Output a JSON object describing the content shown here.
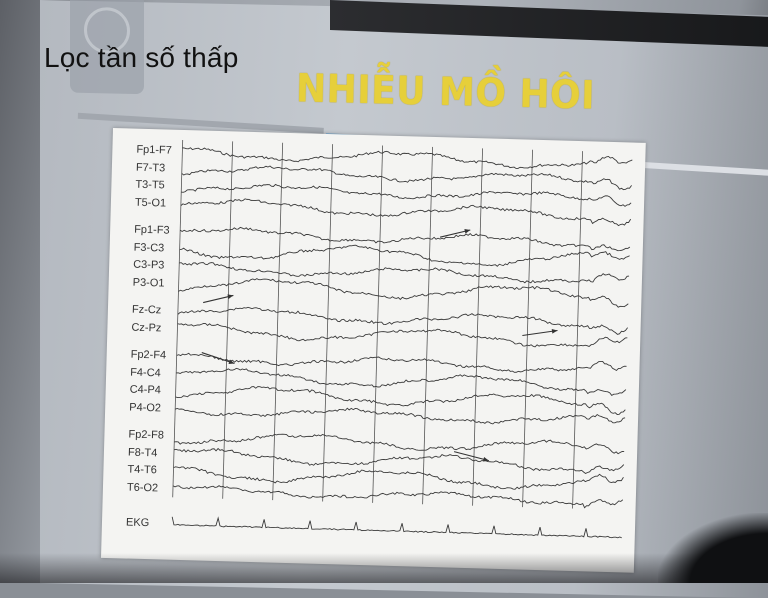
{
  "heading": "Lọc tần số thấp",
  "slide_title": "NHIỄU MỒ HÔI",
  "channels": [
    "Fp1-F7",
    "F7-T3",
    "T3-T5",
    "T5-O1",
    "Fp1-F3",
    "F3-C3",
    "C3-P3",
    "P3-O1",
    "Fz-Cz",
    "Cz-Pz",
    "Fp2-F4",
    "F4-C4",
    "C4-P4",
    "P4-O2",
    "Fp2-F8",
    "F8-T4",
    "T4-T6",
    "T6-O2",
    "EKG"
  ],
  "colors": {
    "title": "#e6cf3a",
    "trace": "#3a3a3a",
    "stripe_blue": "#8ab4d4"
  }
}
